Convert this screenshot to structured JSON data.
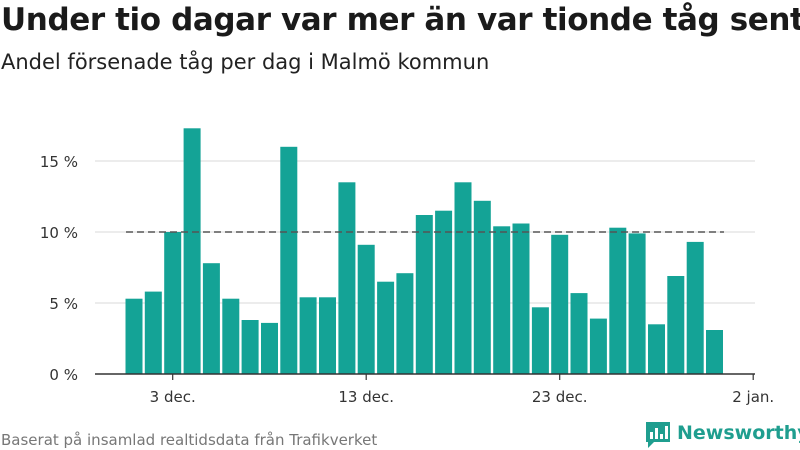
{
  "header": {
    "title": "Under tio dagar var mer än var tionde tåg sent",
    "subtitle": "Andel försenade tåg per dag i Malmö kommun"
  },
  "footer": {
    "source": "Baserat på insamlad realtidsdata från Trafikverket",
    "brand": "Newsworthy"
  },
  "colors": {
    "bar": "#14a396",
    "grid": "#d9d9d9",
    "axis": "#333333",
    "threshold_line": "#555555",
    "brand": "#1f9e8f"
  },
  "icons": {
    "brand": "newsworthy-chart-bubble-icon"
  },
  "chart_data": {
    "type": "bar",
    "x": [
      "2021-12-01",
      "2021-12-02",
      "2021-12-03",
      "2021-12-04",
      "2021-12-05",
      "2021-12-06",
      "2021-12-07",
      "2021-12-08",
      "2021-12-09",
      "2021-12-10",
      "2021-12-11",
      "2021-12-12",
      "2021-12-13",
      "2021-12-14",
      "2021-12-15",
      "2021-12-16",
      "2021-12-17",
      "2021-12-18",
      "2021-12-19",
      "2021-12-20",
      "2021-12-21",
      "2021-12-22",
      "2021-12-23",
      "2021-12-24",
      "2021-12-25",
      "2021-12-26",
      "2021-12-27",
      "2021-12-28",
      "2021-12-29",
      "2021-12-30",
      "2021-12-31"
    ],
    "values": [
      5.3,
      5.8,
      10.0,
      17.3,
      7.8,
      5.3,
      3.8,
      3.6,
      16.0,
      5.4,
      5.4,
      13.5,
      9.1,
      6.5,
      7.1,
      11.2,
      11.5,
      13.5,
      12.2,
      10.4,
      10.6,
      4.7,
      9.8,
      5.7,
      3.9,
      10.3,
      9.9,
      3.5,
      6.9,
      9.3,
      3.1
    ],
    "threshold": {
      "value": 10,
      "style": "dashed"
    },
    "ylim": [
      0,
      20
    ],
    "yticks": [
      0,
      5,
      10,
      15
    ],
    "ytick_labels": [
      "0 %",
      "5 %",
      "10 %",
      "15 %"
    ],
    "xticks": [
      "2021-12-03",
      "2021-12-13",
      "2021-12-23",
      "2022-01-02"
    ],
    "xtick_labels": [
      "3 dec.",
      "13 dec.",
      "23 dec.",
      "2 jan."
    ],
    "xlabel": "",
    "ylabel": "",
    "grid": true,
    "legend": "none"
  }
}
